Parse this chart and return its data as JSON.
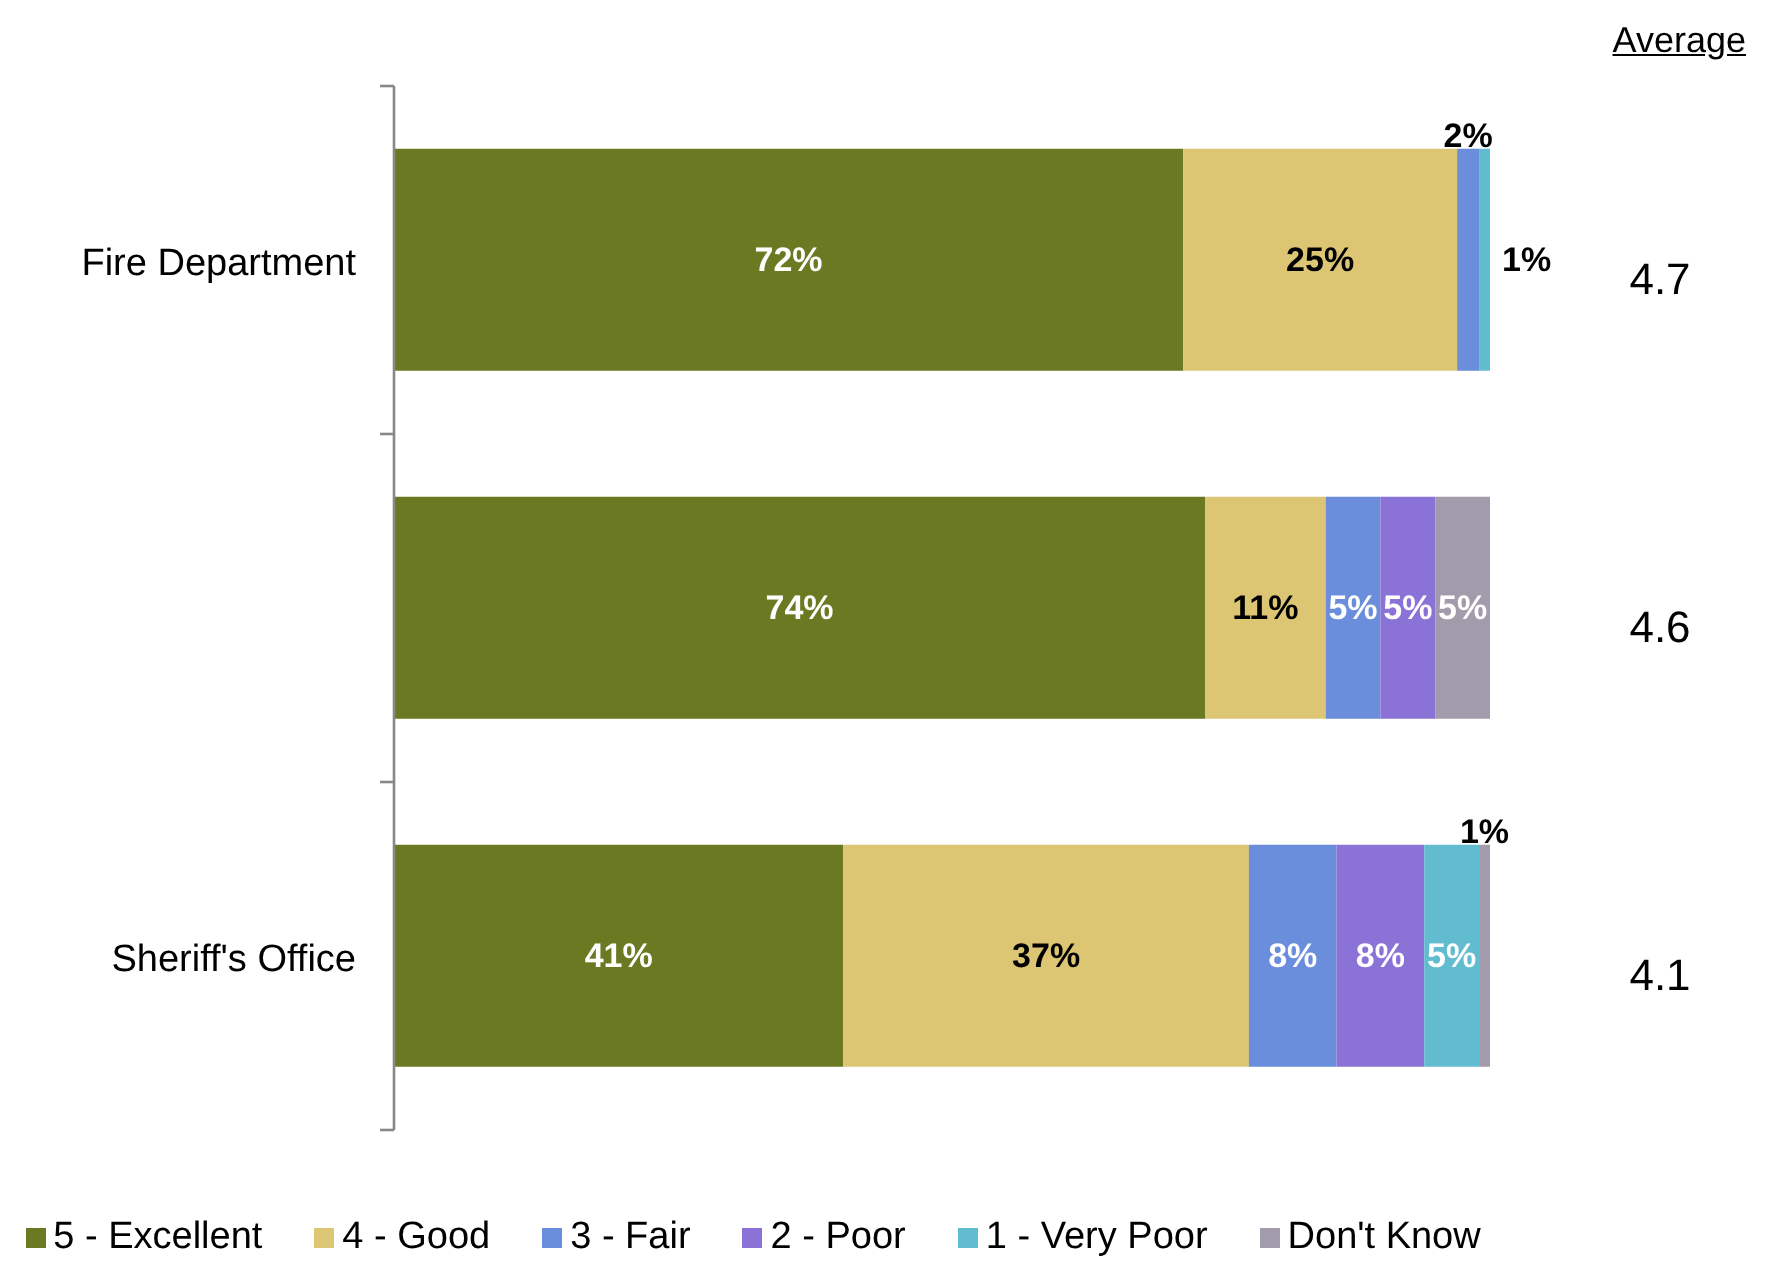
{
  "chart_data": {
    "type": "bar",
    "orientation": "horizontal",
    "stacked": true,
    "categories": [
      "Fire Department",
      null,
      "Sheriff's Office"
    ],
    "xlim": [
      0,
      100
    ],
    "tick_labels": "y",
    "legend": "bottom",
    "series": [
      {
        "name": "5 - Excellent",
        "color": "#6b7a22",
        "values": [
          72,
          74,
          41
        ],
        "value_labels": [
          "72%",
          "74%",
          "41%"
        ]
      },
      {
        "name": "4 - Good",
        "color": "#dcc674",
        "values": [
          25,
          11,
          37
        ],
        "value_labels": [
          "25%",
          "11%",
          "37%"
        ]
      },
      {
        "name": "3 - Fair",
        "color": "#6a8ddc",
        "values": [
          2,
          5,
          8
        ],
        "value_labels": [
          "2%",
          "5%",
          "8%"
        ]
      },
      {
        "name": "2 - Poor",
        "color": "#8a72d6",
        "values": [
          0,
          5,
          8
        ],
        "value_labels": [
          null,
          "5%",
          "8%"
        ]
      },
      {
        "name": "1 - Very Poor",
        "color": "#62bccf",
        "values": [
          1,
          0,
          5
        ],
        "value_labels": [
          "1%",
          null,
          "5%"
        ]
      },
      {
        "name": "Don't Know",
        "color": "#a29bab",
        "values": [
          0,
          5,
          1
        ],
        "value_labels": [
          null,
          "5%",
          "1%"
        ]
      }
    ],
    "annotations": [
      "Average",
      "4.7",
      "4.6",
      "4.1"
    ]
  }
}
